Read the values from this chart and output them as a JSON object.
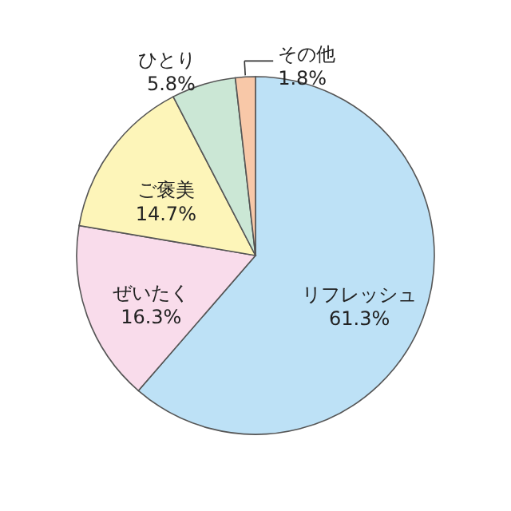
{
  "chart_data": {
    "type": "pie",
    "categories": [
      "リフレッシュ",
      "ぜいたく",
      "ご褒美",
      "ひとり",
      "その他"
    ],
    "values": [
      61.3,
      16.3,
      14.7,
      5.8,
      1.8
    ],
    "colors": [
      "#bde1f6",
      "#f9dceb",
      "#fdf5b9",
      "#cbe7d5",
      "#f8c8a8"
    ],
    "value_labels": [
      "61.3%",
      "16.3%",
      "14.7%",
      "5.8%",
      "1.8%"
    ],
    "data_labels": true,
    "legend": false
  }
}
